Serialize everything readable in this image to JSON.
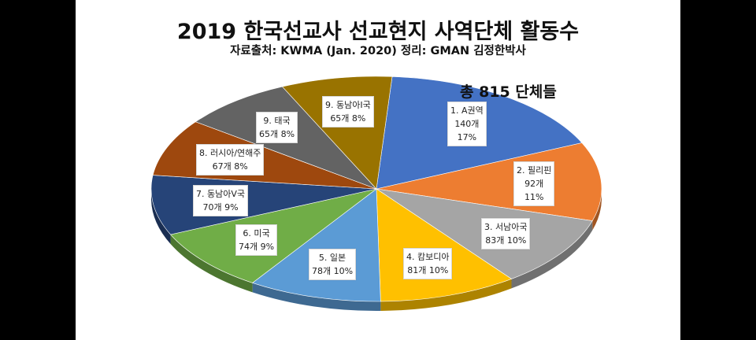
{
  "title": "2019 한국선교사 선교현지 사역단체 활동수",
  "subtitle": "자료출처: KWMA (Jan. 2020) 정리: GMAN 김정한박사",
  "total_label": "총 815 단체들",
  "chart_data": {
    "type": "pie",
    "total": 815,
    "slices": [
      {
        "name": "1. A권역",
        "count": "140개",
        "pct": "17%",
        "value": 140,
        "color": "#4472c4"
      },
      {
        "name": "2. 필리핀",
        "count": "92개",
        "pct": "11%",
        "value": 92,
        "color": "#ed7d31"
      },
      {
        "name": "3. 서남아국",
        "count": "83개",
        "pct": "10%",
        "value": 83,
        "color": "#a5a5a5"
      },
      {
        "name": "4. 캄보디아",
        "count": "81개",
        "pct": "10%",
        "value": 81,
        "color": "#ffc000"
      },
      {
        "name": "5. 일본",
        "count": "78개",
        "pct": "10%",
        "value": 78,
        "color": "#5b9bd5"
      },
      {
        "name": "6. 미국",
        "count": "74개",
        "pct": "9%",
        "value": 74,
        "color": "#70ad47"
      },
      {
        "name": "7. 동남아V국",
        "count": "70개",
        "pct": "9%",
        "value": 70,
        "color": "#264478"
      },
      {
        "name": "8. 러시아/연해주",
        "count": "67개",
        "pct": "8%",
        "value": 67,
        "color": "#9e480e"
      },
      {
        "name": "9. 태국",
        "count": "65개",
        "pct": "8%",
        "value": 65,
        "color": "#636363"
      },
      {
        "name": "9. 동남아I국",
        "count": "65개",
        "pct": "8%",
        "value": 65,
        "color": "#997300"
      }
    ]
  }
}
